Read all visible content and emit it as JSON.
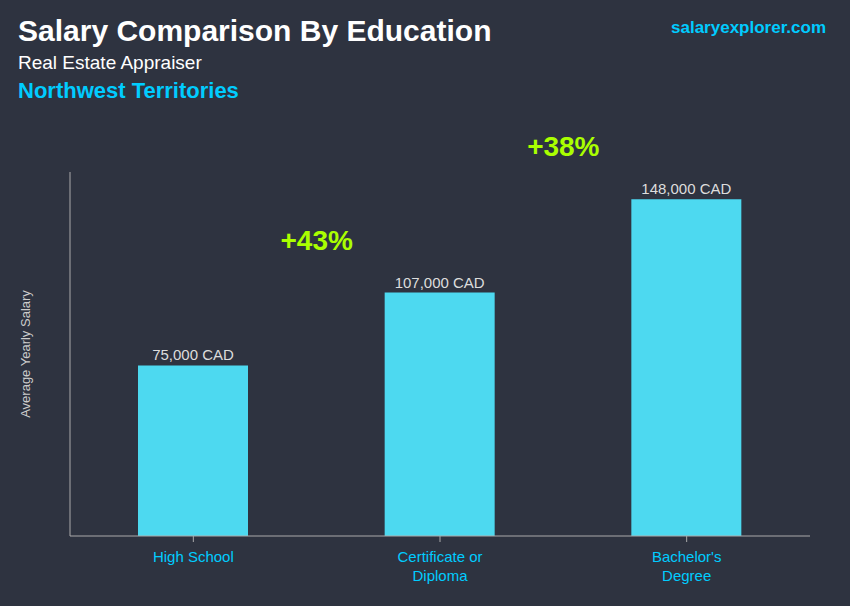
{
  "chart_data": {
    "type": "bar",
    "title": "Salary Comparison By Education",
    "subtitle": [
      "Real Estate Appraiser",
      "Northwest Territories"
    ],
    "y_label": "Average Yearly Salary",
    "categories": [
      "High School",
      "Certificate or\nDiploma",
      "Bachelor's\nDegree"
    ],
    "values": [
      75000,
      107000,
      148000
    ],
    "value_labels": [
      "75,000 CAD",
      "107,000 CAD",
      "148,000 CAD"
    ],
    "data_labels": true,
    "color": "#4dd9f0",
    "ylim": [
      0,
      160000
    ],
    "tick_labels": "x",
    "grid": false,
    "annotations": [
      "+43%",
      "+38%"
    ],
    "watermark": "salaryexplorer.com"
  }
}
